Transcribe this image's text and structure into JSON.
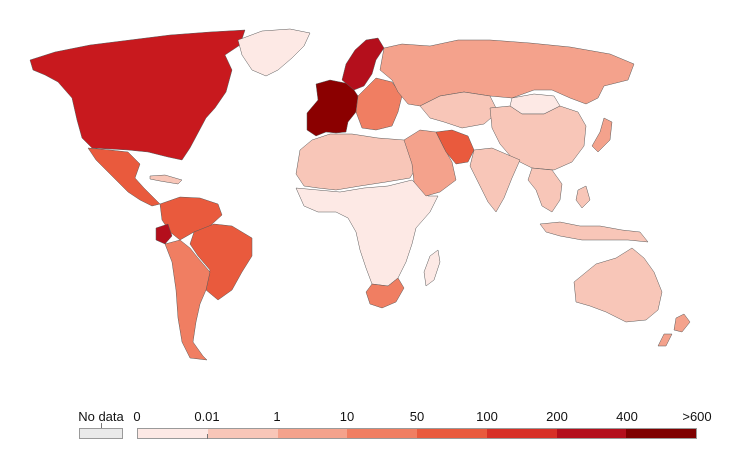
{
  "legend": {
    "no_data_label": "No data",
    "no_data_color": "#eaeaea",
    "bins": [
      "0",
      "0.01",
      "1",
      "10",
      "50",
      "100",
      "200",
      "400",
      ">600"
    ],
    "colors": [
      "#fde9e5",
      "#f8c6b8",
      "#f4a28c",
      "#f07e62",
      "#e95a3d",
      "#d73027",
      "#b40f1c",
      "#7f0000"
    ]
  },
  "regions": [
    {
      "name": "north-america",
      "color": "#c8191e"
    },
    {
      "name": "greenland",
      "color": "#fde9e5"
    },
    {
      "name": "mexico-central-america",
      "color": "#e95a3d"
    },
    {
      "name": "cuba",
      "color": "#f8c6b8"
    },
    {
      "name": "northern-south-america",
      "color": "#e95a3d"
    },
    {
      "name": "ecuador",
      "color": "#b40f1c"
    },
    {
      "name": "brazil",
      "color": "#e95a3d"
    },
    {
      "name": "southern-south-america",
      "color": "#f07e62"
    },
    {
      "name": "western-europe",
      "color": "#8b0000"
    },
    {
      "name": "scandinavia",
      "color": "#b40f1c"
    },
    {
      "name": "eastern-europe",
      "color": "#f07e62"
    },
    {
      "name": "russia",
      "color": "#f4a28c"
    },
    {
      "name": "north-africa",
      "color": "#f8c6b8"
    },
    {
      "name": "sub-saharan-africa",
      "color": "#fde9e5"
    },
    {
      "name": "south-africa",
      "color": "#f07e62"
    },
    {
      "name": "madagascar",
      "color": "#fde9e5"
    },
    {
      "name": "middle-east",
      "color": "#f4a28c"
    },
    {
      "name": "iran",
      "color": "#e95a3d"
    },
    {
      "name": "central-asia",
      "color": "#f8c6b8"
    },
    {
      "name": "mongolia",
      "color": "#fde9e5"
    },
    {
      "name": "china",
      "color": "#f8c6b8"
    },
    {
      "name": "india",
      "color": "#f8c6b8"
    },
    {
      "name": "southeast-asia",
      "color": "#f8c6b8"
    },
    {
      "name": "japan",
      "color": "#f4a28c"
    },
    {
      "name": "indonesia",
      "color": "#f8c6b8"
    },
    {
      "name": "australia",
      "color": "#f8c6b8"
    },
    {
      "name": "new-zealand",
      "color": "#f4a28c"
    }
  ]
}
